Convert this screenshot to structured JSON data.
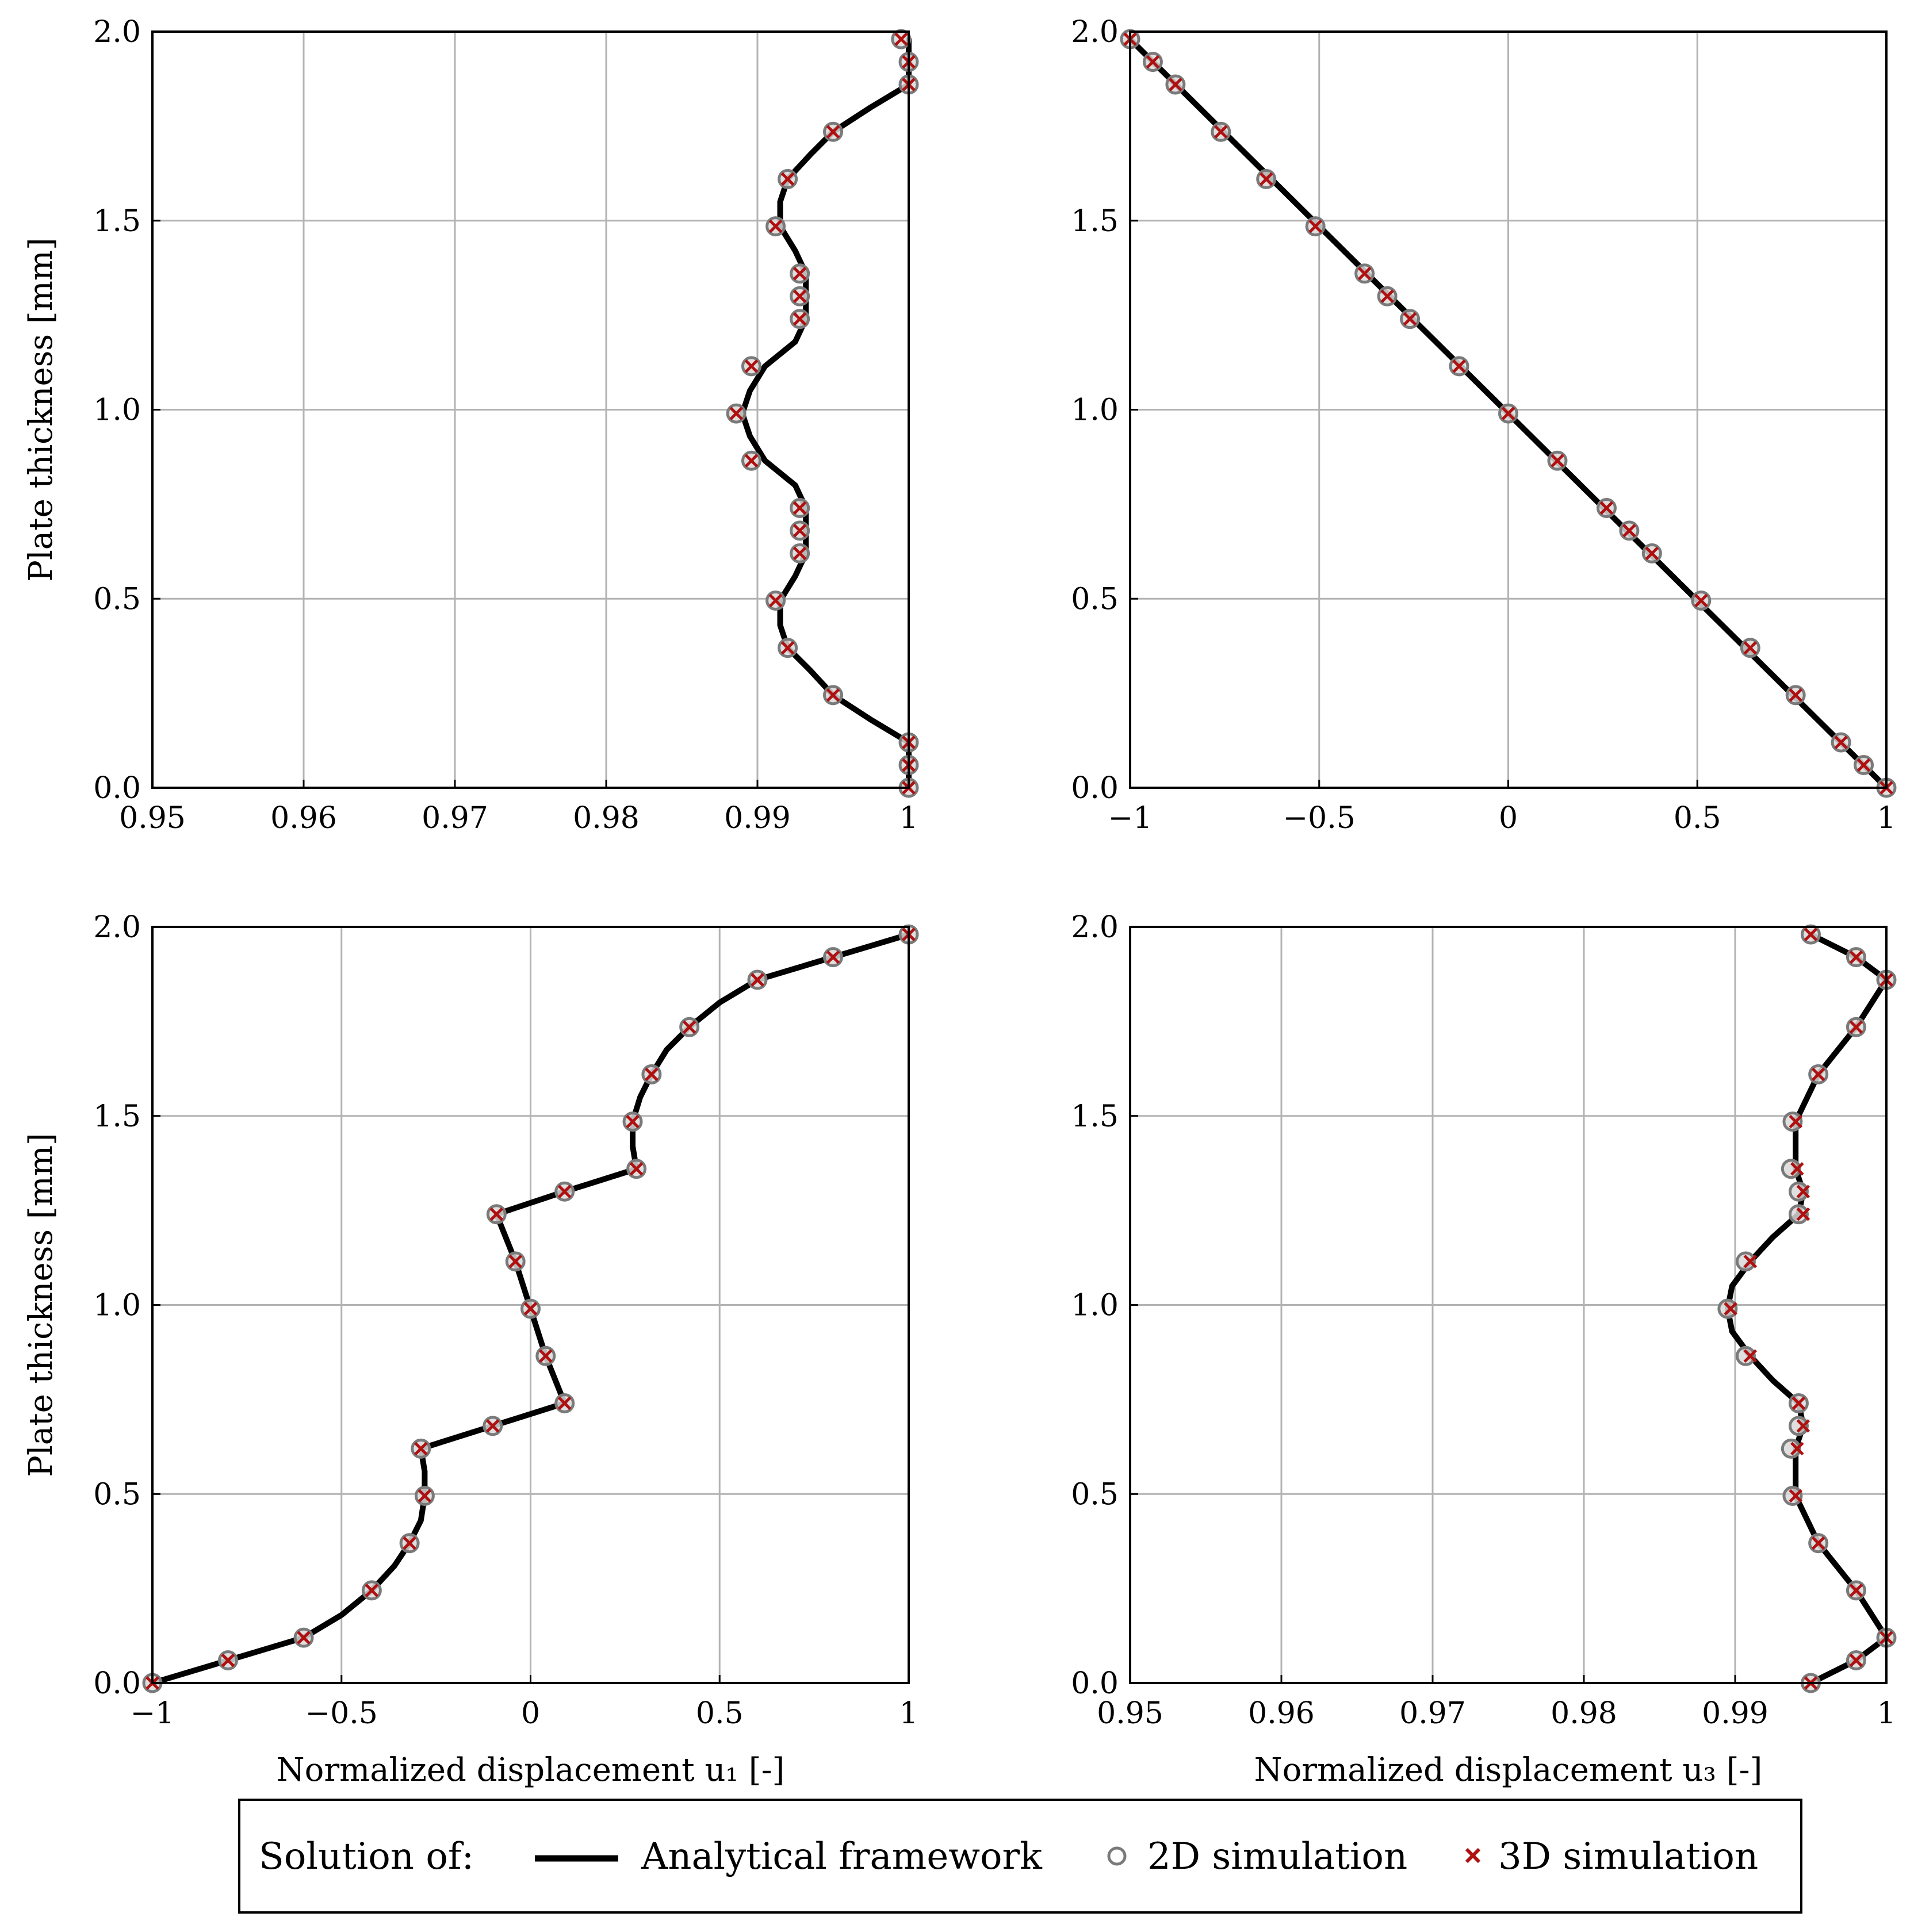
{
  "chart_data": [
    {
      "type": "line",
      "panel": "top-left",
      "ylabel": "Plate thickness [mm]",
      "xlabel": "",
      "xlim": [
        0.95,
        1.0
      ],
      "ylim": [
        0,
        2.0
      ],
      "xticks": [
        "0.95",
        "0.96",
        "0.97",
        "0.98",
        "0.99",
        "1"
      ],
      "yticks": [
        "0.0",
        "0.5",
        "1.0",
        "1.5",
        "2.0"
      ],
      "grid": true,
      "curve": [
        [
          1.0,
          0.0
        ],
        [
          1.0,
          0.06
        ],
        [
          1.0,
          0.12
        ],
        [
          0.9975,
          0.18
        ],
        [
          0.995,
          0.245
        ],
        [
          0.9935,
          0.31
        ],
        [
          0.992,
          0.37
        ],
        [
          0.9915,
          0.43
        ],
        [
          0.9915,
          0.495
        ],
        [
          0.9925,
          0.56
        ],
        [
          0.9932,
          0.62
        ],
        [
          0.9932,
          0.68
        ],
        [
          0.9932,
          0.74
        ],
        [
          0.9925,
          0.8
        ],
        [
          0.9905,
          0.865
        ],
        [
          0.9895,
          0.93
        ],
        [
          0.989,
          0.99
        ],
        [
          0.9895,
          1.05
        ],
        [
          0.9905,
          1.115
        ],
        [
          0.9925,
          1.18
        ],
        [
          0.9932,
          1.24
        ],
        [
          0.9932,
          1.3
        ],
        [
          0.9932,
          1.36
        ],
        [
          0.9925,
          1.42
        ],
        [
          0.9915,
          1.485
        ],
        [
          0.9915,
          1.55
        ],
        [
          0.992,
          1.61
        ],
        [
          0.9935,
          1.675
        ],
        [
          0.995,
          1.735
        ],
        [
          0.9975,
          1.8
        ],
        [
          1.0,
          1.86
        ],
        [
          1.0,
          1.92
        ],
        [
          1.0,
          1.98
        ]
      ],
      "points_2d": [
        [
          1.0,
          0.0
        ],
        [
          1.0,
          0.06
        ],
        [
          1.0,
          0.12
        ],
        [
          0.995,
          0.245
        ],
        [
          0.992,
          0.37
        ],
        [
          0.9912,
          0.495
        ],
        [
          0.9928,
          0.62
        ],
        [
          0.9928,
          0.68
        ],
        [
          0.9928,
          0.74
        ],
        [
          0.9896,
          0.865
        ],
        [
          0.9886,
          0.99
        ],
        [
          0.9896,
          1.115
        ],
        [
          0.9928,
          1.24
        ],
        [
          0.9928,
          1.3
        ],
        [
          0.9928,
          1.36
        ],
        [
          0.9912,
          1.485
        ],
        [
          0.992,
          1.61
        ],
        [
          0.995,
          1.735
        ],
        [
          1.0,
          1.86
        ],
        [
          1.0,
          1.92
        ],
        [
          0.9995,
          1.98
        ]
      ],
      "points_3d": [
        [
          1.0,
          0.0
        ],
        [
          1.0,
          0.06
        ],
        [
          1.0,
          0.12
        ],
        [
          0.995,
          0.245
        ],
        [
          0.992,
          0.37
        ],
        [
          0.9912,
          0.495
        ],
        [
          0.9928,
          0.62
        ],
        [
          0.9928,
          0.68
        ],
        [
          0.9928,
          0.74
        ],
        [
          0.9896,
          0.865
        ],
        [
          0.9886,
          0.99
        ],
        [
          0.9896,
          1.115
        ],
        [
          0.9928,
          1.24
        ],
        [
          0.9928,
          1.3
        ],
        [
          0.9928,
          1.36
        ],
        [
          0.9912,
          1.485
        ],
        [
          0.992,
          1.61
        ],
        [
          0.995,
          1.735
        ],
        [
          1.0,
          1.86
        ],
        [
          1.0,
          1.92
        ],
        [
          0.9995,
          1.98
        ]
      ]
    },
    {
      "type": "line",
      "panel": "top-right",
      "ylabel": "",
      "xlabel": "",
      "xlim": [
        -1,
        1
      ],
      "ylim": [
        0,
        2.0
      ],
      "xticks": [
        "−1",
        "−0.5",
        "0",
        "0.5",
        "1"
      ],
      "yticks": [
        "0.0",
        "0.5",
        "1.0",
        "1.5",
        "2.0"
      ],
      "grid": true,
      "curve": [
        [
          1.0,
          0.0
        ],
        [
          -1.0,
          1.98
        ]
      ],
      "points_2d": [
        [
          1.0,
          0.0
        ],
        [
          0.94,
          0.06
        ],
        [
          0.88,
          0.12
        ],
        [
          0.76,
          0.245
        ],
        [
          0.64,
          0.37
        ],
        [
          0.51,
          0.495
        ],
        [
          0.38,
          0.62
        ],
        [
          0.32,
          0.68
        ],
        [
          0.26,
          0.74
        ],
        [
          0.13,
          0.865
        ],
        [
          0.0,
          0.99
        ],
        [
          -0.13,
          1.115
        ],
        [
          -0.26,
          1.24
        ],
        [
          -0.32,
          1.3
        ],
        [
          -0.38,
          1.36
        ],
        [
          -0.51,
          1.485
        ],
        [
          -0.64,
          1.61
        ],
        [
          -0.76,
          1.735
        ],
        [
          -0.88,
          1.86
        ],
        [
          -0.94,
          1.92
        ],
        [
          -1.0,
          1.98
        ]
      ],
      "points_3d": [
        [
          1.0,
          0.0
        ],
        [
          0.94,
          0.06
        ],
        [
          0.88,
          0.12
        ],
        [
          0.76,
          0.245
        ],
        [
          0.64,
          0.37
        ],
        [
          0.51,
          0.495
        ],
        [
          0.38,
          0.62
        ],
        [
          0.32,
          0.68
        ],
        [
          0.26,
          0.74
        ],
        [
          0.13,
          0.865
        ],
        [
          0.0,
          0.99
        ],
        [
          -0.13,
          1.115
        ],
        [
          -0.26,
          1.24
        ],
        [
          -0.32,
          1.3
        ],
        [
          -0.38,
          1.36
        ],
        [
          -0.51,
          1.485
        ],
        [
          -0.64,
          1.61
        ],
        [
          -0.76,
          1.735
        ],
        [
          -0.88,
          1.86
        ],
        [
          -0.94,
          1.92
        ],
        [
          -1.0,
          1.98
        ]
      ]
    },
    {
      "type": "line",
      "panel": "bottom-left",
      "ylabel": "Plate thickness [mm]",
      "xlabel": "Normalized displacement u₁ [-]",
      "xlim": [
        -1,
        1
      ],
      "ylim": [
        0,
        2.0
      ],
      "xticks": [
        "−1",
        "−0.5",
        "0",
        "0.5",
        "1"
      ],
      "yticks": [
        "0.0",
        "0.5",
        "1.0",
        "1.5",
        "2.0"
      ],
      "grid": true,
      "curve": [
        [
          -1.0,
          0.0
        ],
        [
          -0.8,
          0.06
        ],
        [
          -0.6,
          0.12
        ],
        [
          -0.5,
          0.18
        ],
        [
          -0.42,
          0.245
        ],
        [
          -0.36,
          0.31
        ],
        [
          -0.32,
          0.37
        ],
        [
          -0.29,
          0.43
        ],
        [
          -0.28,
          0.495
        ],
        [
          -0.28,
          0.56
        ],
        [
          -0.29,
          0.62
        ],
        [
          -0.1,
          0.68
        ],
        [
          0.09,
          0.74
        ],
        [
          0.04,
          0.865
        ],
        [
          0.0,
          0.99
        ],
        [
          -0.04,
          1.115
        ],
        [
          -0.09,
          1.24
        ],
        [
          0.09,
          1.3
        ],
        [
          0.28,
          1.36
        ],
        [
          0.27,
          1.42
        ],
        [
          0.27,
          1.485
        ],
        [
          0.29,
          1.55
        ],
        [
          0.32,
          1.61
        ],
        [
          0.36,
          1.675
        ],
        [
          0.42,
          1.735
        ],
        [
          0.5,
          1.8
        ],
        [
          0.6,
          1.86
        ],
        [
          0.8,
          1.92
        ],
        [
          1.0,
          1.98
        ]
      ],
      "points_2d": [
        [
          -1.0,
          0.0
        ],
        [
          -0.8,
          0.06
        ],
        [
          -0.6,
          0.12
        ],
        [
          -0.42,
          0.245
        ],
        [
          -0.32,
          0.37
        ],
        [
          -0.28,
          0.495
        ],
        [
          -0.29,
          0.62
        ],
        [
          -0.1,
          0.68
        ],
        [
          0.09,
          0.74
        ],
        [
          0.04,
          0.865
        ],
        [
          0.0,
          0.99
        ],
        [
          -0.04,
          1.115
        ],
        [
          -0.09,
          1.24
        ],
        [
          0.09,
          1.3
        ],
        [
          0.28,
          1.36
        ],
        [
          0.27,
          1.485
        ],
        [
          0.32,
          1.61
        ],
        [
          0.42,
          1.735
        ],
        [
          0.6,
          1.86
        ],
        [
          0.8,
          1.92
        ],
        [
          1.0,
          1.98
        ]
      ],
      "points_3d": [
        [
          -1.0,
          0.0
        ],
        [
          -0.8,
          0.06
        ],
        [
          -0.6,
          0.12
        ],
        [
          -0.42,
          0.245
        ],
        [
          -0.32,
          0.37
        ],
        [
          -0.28,
          0.495
        ],
        [
          -0.29,
          0.62
        ],
        [
          -0.1,
          0.68
        ],
        [
          0.09,
          0.74
        ],
        [
          0.04,
          0.865
        ],
        [
          0.0,
          0.99
        ],
        [
          -0.04,
          1.115
        ],
        [
          -0.09,
          1.24
        ],
        [
          0.09,
          1.3
        ],
        [
          0.28,
          1.36
        ],
        [
          0.27,
          1.485
        ],
        [
          0.32,
          1.61
        ],
        [
          0.42,
          1.735
        ],
        [
          0.6,
          1.86
        ],
        [
          0.8,
          1.92
        ],
        [
          1.0,
          1.98
        ]
      ]
    },
    {
      "type": "line",
      "panel": "bottom-right",
      "ylabel": "",
      "xlabel": "Normalized displacement u₃ [-]",
      "xlim": [
        0.95,
        1.0
      ],
      "ylim": [
        0,
        2.0
      ],
      "xticks": [
        "0.95",
        "0.96",
        "0.97",
        "0.98",
        "0.99",
        "1"
      ],
      "yticks": [
        "0.0",
        "0.5",
        "1.0",
        "1.5",
        "2.0"
      ],
      "grid": true,
      "curve": [
        [
          0.995,
          0.0
        ],
        [
          0.998,
          0.06
        ],
        [
          1.0,
          0.12
        ],
        [
          0.998,
          0.245
        ],
        [
          0.9955,
          0.37
        ],
        [
          0.994,
          0.495
        ],
        [
          0.994,
          0.62
        ],
        [
          0.9945,
          0.68
        ],
        [
          0.9942,
          0.74
        ],
        [
          0.9925,
          0.8
        ],
        [
          0.991,
          0.865
        ],
        [
          0.9898,
          0.93
        ],
        [
          0.9895,
          0.99
        ],
        [
          0.9898,
          1.05
        ],
        [
          0.991,
          1.115
        ],
        [
          0.9925,
          1.18
        ],
        [
          0.9942,
          1.24
        ],
        [
          0.9945,
          1.3
        ],
        [
          0.994,
          1.36
        ],
        [
          0.994,
          1.485
        ],
        [
          0.9955,
          1.61
        ],
        [
          0.998,
          1.735
        ],
        [
          1.0,
          1.86
        ],
        [
          0.998,
          1.92
        ],
        [
          0.995,
          1.98
        ]
      ],
      "points_2d": [
        [
          0.995,
          0.0
        ],
        [
          0.998,
          0.06
        ],
        [
          1.0,
          0.12
        ],
        [
          0.998,
          0.245
        ],
        [
          0.9955,
          0.37
        ],
        [
          0.9938,
          0.495
        ],
        [
          0.9937,
          0.62
        ],
        [
          0.9942,
          0.68
        ],
        [
          0.9942,
          0.74
        ],
        [
          0.9907,
          0.865
        ],
        [
          0.9895,
          0.99
        ],
        [
          0.9907,
          1.115
        ],
        [
          0.9942,
          1.24
        ],
        [
          0.9942,
          1.3
        ],
        [
          0.9937,
          1.36
        ],
        [
          0.9938,
          1.485
        ],
        [
          0.9955,
          1.61
        ],
        [
          0.998,
          1.735
        ],
        [
          1.0,
          1.86
        ],
        [
          0.998,
          1.92
        ],
        [
          0.995,
          1.98
        ]
      ],
      "points_3d": [
        [
          0.995,
          0.0
        ],
        [
          0.998,
          0.06
        ],
        [
          1.0,
          0.12
        ],
        [
          0.998,
          0.245
        ],
        [
          0.9955,
          0.37
        ],
        [
          0.994,
          0.495
        ],
        [
          0.9941,
          0.62
        ],
        [
          0.9945,
          0.68
        ],
        [
          0.9942,
          0.74
        ],
        [
          0.991,
          0.865
        ],
        [
          0.9897,
          0.99
        ],
        [
          0.991,
          1.115
        ],
        [
          0.9945,
          1.24
        ],
        [
          0.9945,
          1.3
        ],
        [
          0.9941,
          1.36
        ],
        [
          0.994,
          1.485
        ],
        [
          0.9955,
          1.61
        ],
        [
          0.998,
          1.735
        ],
        [
          1.0,
          1.86
        ],
        [
          0.998,
          1.92
        ],
        [
          0.995,
          1.98
        ]
      ]
    }
  ],
  "legend": {
    "title": "Solution of:",
    "entries": [
      {
        "label": "Analytical framework",
        "marker": "line",
        "color": "#000000"
      },
      {
        "label": "2D simulation",
        "marker": "circle",
        "color": "#808080"
      },
      {
        "label": "3D simulation",
        "marker": "cross",
        "color": "#b01010"
      }
    ],
    "placement": "bottom-center"
  },
  "colors": {
    "curve": "#000000",
    "grid": "#b3b3b3",
    "circle_stroke": "#7a7a7a",
    "circle_fill": "#d9d9d9",
    "cross": "#b01010"
  }
}
